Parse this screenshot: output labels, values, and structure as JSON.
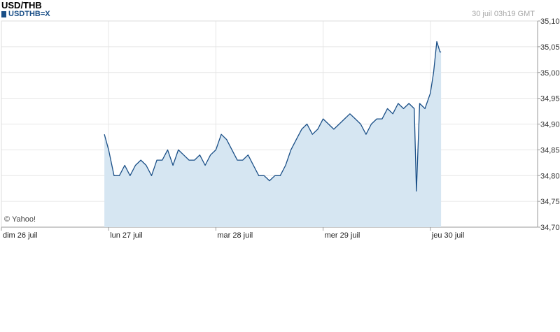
{
  "header": {
    "title": "USD/THB",
    "legend_label": "USDTHB=X",
    "timestamp": "30 juil 03h19 GMT"
  },
  "credit": "© Yahoo!",
  "colors": {
    "line": "#1a4f87",
    "fill": "#d6e6f2",
    "grid": "#e6e6e6",
    "axis": "#9a9a9a"
  },
  "chart_data": {
    "type": "area",
    "title": "USD/THB",
    "series": [
      {
        "name": "USDTHB=X",
        "x": [
          0.96,
          1.0,
          1.05,
          1.1,
          1.15,
          1.2,
          1.25,
          1.3,
          1.35,
          1.4,
          1.45,
          1.5,
          1.55,
          1.6,
          1.65,
          1.7,
          1.75,
          1.8,
          1.85,
          1.9,
          1.95,
          2.0,
          2.05,
          2.1,
          2.15,
          2.2,
          2.25,
          2.3,
          2.35,
          2.4,
          2.45,
          2.5,
          2.55,
          2.6,
          2.65,
          2.7,
          2.75,
          2.8,
          2.85,
          2.9,
          2.95,
          3.0,
          3.05,
          3.1,
          3.15,
          3.2,
          3.25,
          3.3,
          3.35,
          3.4,
          3.45,
          3.5,
          3.55,
          3.6,
          3.65,
          3.7,
          3.75,
          3.8,
          3.85,
          3.87,
          3.9,
          3.95,
          4.0,
          4.03,
          4.06,
          4.09,
          4.1
        ],
        "y": [
          34.88,
          34.85,
          34.8,
          34.8,
          34.82,
          34.8,
          34.82,
          34.83,
          34.82,
          34.8,
          34.83,
          34.83,
          34.85,
          34.82,
          34.85,
          34.84,
          34.83,
          34.83,
          34.84,
          34.82,
          34.84,
          34.85,
          34.88,
          34.87,
          34.85,
          34.83,
          34.83,
          34.84,
          34.82,
          34.8,
          34.8,
          34.79,
          34.8,
          34.8,
          34.82,
          34.85,
          34.87,
          34.89,
          34.9,
          34.88,
          34.89,
          34.91,
          34.9,
          34.89,
          34.9,
          34.91,
          34.92,
          34.91,
          34.9,
          34.88,
          34.9,
          34.91,
          34.91,
          34.93,
          34.92,
          34.94,
          34.93,
          34.94,
          34.93,
          34.77,
          34.94,
          34.93,
          34.96,
          35.0,
          35.06,
          35.04,
          35.04
        ]
      }
    ],
    "x_ticks": [
      {
        "pos": 0,
        "label": "dim 26 juil"
      },
      {
        "pos": 1,
        "label": "lun 27 juil"
      },
      {
        "pos": 2,
        "label": "mar 28 juil"
      },
      {
        "pos": 3,
        "label": "mer 29 juil"
      },
      {
        "pos": 4,
        "label": "jeu 30 juil"
      }
    ],
    "xlim": [
      0,
      5.0
    ],
    "y_ticks": [
      "35,10",
      "35,05",
      "35,00",
      "34,95",
      "34,90",
      "34,85",
      "34,80",
      "34,75",
      "34,70"
    ],
    "ylim": [
      34.7,
      35.1
    ],
    "grid": true
  }
}
